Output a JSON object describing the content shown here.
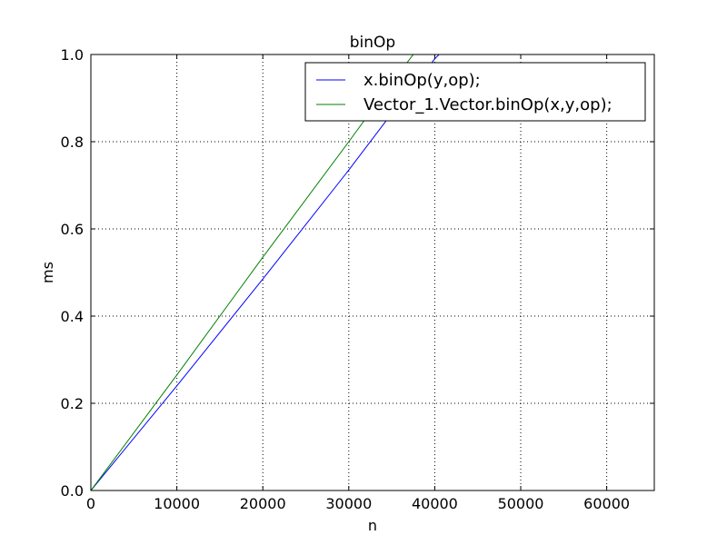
{
  "chart_data": {
    "type": "line",
    "title": "binOp",
    "xlabel": "n",
    "ylabel": "ms",
    "xlim": [
      0,
      65536
    ],
    "ylim": [
      0,
      1.0
    ],
    "xticks": [
      0,
      10000,
      20000,
      30000,
      40000,
      50000,
      60000
    ],
    "xtick_labels": [
      "0",
      "10000",
      "20000",
      "30000",
      "40000",
      "50000",
      "60000"
    ],
    "yticks": [
      0.0,
      0.2,
      0.4,
      0.6,
      0.8,
      1.0
    ],
    "ytick_labels": [
      "0.0",
      "0.2",
      "0.4",
      "0.6",
      "0.8",
      "1.0"
    ],
    "grid": true,
    "legend_position": "top-right",
    "series": [
      {
        "name": "x.binOp(y,op);",
        "color": "#0000ff",
        "x": [
          0,
          10000,
          20000,
          30000,
          35000,
          40000,
          40500
        ],
        "y": [
          0,
          0.24,
          0.485,
          0.735,
          0.865,
          0.99,
          1.0
        ]
      },
      {
        "name": "Vector_1.Vector.binOp(x,y,op);",
        "color": "#008000",
        "x": [
          0,
          10000,
          20000,
          30000,
          35000,
          37500
        ],
        "y": [
          0,
          0.265,
          0.535,
          0.8,
          0.935,
          1.0
        ]
      }
    ]
  }
}
